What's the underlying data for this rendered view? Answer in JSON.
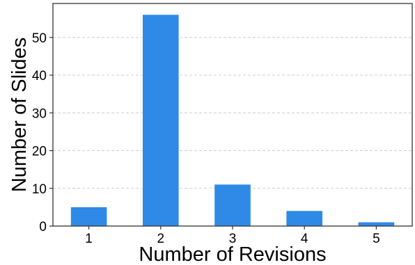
{
  "chart_data": {
    "type": "bar",
    "categories": [
      "1",
      "2",
      "3",
      "4",
      "5"
    ],
    "values": [
      5,
      56,
      11,
      4,
      1
    ],
    "xlabel": "Number of Revisions",
    "ylabel": "Number of Slides",
    "ylim": [
      0,
      59
    ],
    "yticks": [
      0,
      10,
      20,
      30,
      40,
      50
    ],
    "ytick_labels": [
      "0",
      "10",
      "20",
      "30",
      "40",
      "50"
    ],
    "grid": "horizontal dashed",
    "bar_color": "#2e8ae6",
    "grid_color": "#cccccc",
    "legend": "none"
  }
}
